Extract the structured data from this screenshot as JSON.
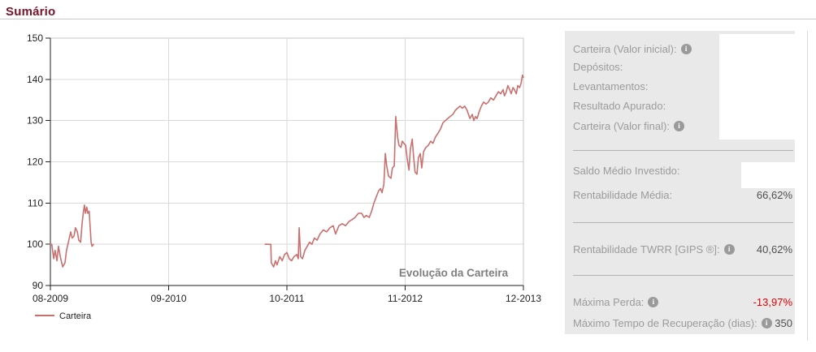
{
  "page": {
    "title": "Sumário"
  },
  "chart_data": {
    "type": "line",
    "title": "Evolução da Carteira",
    "x_tick_labels": [
      "08-2009",
      "09-2010",
      "10-2011",
      "11-2012",
      "12-2013"
    ],
    "y_ticks": [
      90,
      100,
      110,
      120,
      130,
      140,
      150
    ],
    "ylim": [
      90,
      150
    ],
    "grid": true,
    "legend_position": "bottom-left",
    "colors": {
      "line": "#c9706f",
      "grid": "#d9d9d9",
      "border": "#c4c4c4",
      "axis": "#222222",
      "title": "#7f7f7f"
    },
    "series": [
      {
        "name": "Carteira",
        "color": "#c9706f",
        "segments": [
          [
            [
              0.0,
              100
            ],
            [
              0.003,
              100
            ],
            [
              0.007,
              96.5
            ],
            [
              0.01,
              98.5
            ],
            [
              0.014,
              96
            ],
            [
              0.017,
              99.5
            ],
            [
              0.021,
              97
            ],
            [
              0.026,
              94.5
            ],
            [
              0.031,
              95.5
            ],
            [
              0.034,
              98.5
            ],
            [
              0.04,
              101.5
            ],
            [
              0.043,
              103
            ],
            [
              0.046,
              101.5
            ],
            [
              0.05,
              102
            ],
            [
              0.053,
              104
            ],
            [
              0.057,
              103
            ],
            [
              0.06,
              101
            ],
            [
              0.064,
              100.5
            ],
            [
              0.067,
              105
            ],
            [
              0.07,
              108
            ],
            [
              0.072,
              109.5
            ],
            [
              0.074,
              107.5
            ],
            [
              0.077,
              109
            ],
            [
              0.079,
              107.5
            ],
            [
              0.082,
              108
            ],
            [
              0.086,
              100.5
            ],
            [
              0.088,
              99.5
            ],
            [
              0.091,
              100
            ]
          ],
          [
            [
              0.454,
              100
            ],
            [
              0.466,
              100
            ],
            [
              0.467,
              95.5
            ],
            [
              0.472,
              94.5
            ],
            [
              0.476,
              96
            ],
            [
              0.479,
              95
            ],
            [
              0.485,
              97
            ],
            [
              0.49,
              96
            ],
            [
              0.495,
              97.5
            ],
            [
              0.5,
              98
            ],
            [
              0.505,
              96.5
            ],
            [
              0.51,
              96
            ],
            [
              0.515,
              97
            ],
            [
              0.521,
              97.5
            ],
            [
              0.524,
              96.5
            ],
            [
              0.526,
              104
            ],
            [
              0.529,
              97
            ],
            [
              0.533,
              96.5
            ],
            [
              0.538,
              98.5
            ],
            [
              0.543,
              99.5
            ],
            [
              0.548,
              100.5
            ],
            [
              0.553,
              100
            ],
            [
              0.558,
              101.5
            ],
            [
              0.564,
              101
            ],
            [
              0.57,
              102.5
            ],
            [
              0.577,
              103.5
            ],
            [
              0.584,
              103
            ],
            [
              0.591,
              104
            ],
            [
              0.598,
              104.5
            ],
            [
              0.603,
              102.5
            ],
            [
              0.61,
              104.5
            ],
            [
              0.617,
              105
            ],
            [
              0.624,
              104.5
            ],
            [
              0.631,
              105.5
            ],
            [
              0.638,
              106
            ],
            [
              0.644,
              106.5
            ],
            [
              0.651,
              107.5
            ],
            [
              0.658,
              107.5
            ],
            [
              0.663,
              106.5
            ],
            [
              0.668,
              107
            ],
            [
              0.674,
              106.5
            ],
            [
              0.679,
              108
            ],
            [
              0.684,
              110
            ],
            [
              0.689,
              111.5
            ],
            [
              0.694,
              113
            ],
            [
              0.698,
              113.5
            ],
            [
              0.701,
              112.5
            ],
            [
              0.705,
              114.5
            ],
            [
              0.708,
              122
            ],
            [
              0.711,
              119
            ],
            [
              0.715,
              116.5
            ],
            [
              0.72,
              116
            ],
            [
              0.723,
              118.5
            ],
            [
              0.727,
              119
            ],
            [
              0.73,
              131
            ],
            [
              0.734,
              126
            ],
            [
              0.737,
              124
            ],
            [
              0.741,
              123.5
            ],
            [
              0.744,
              125
            ],
            [
              0.747,
              124.5
            ],
            [
              0.751,
              124
            ],
            [
              0.754,
              121
            ],
            [
              0.758,
              118
            ],
            [
              0.761,
              123
            ],
            [
              0.765,
              125.5
            ],
            [
              0.768,
              121
            ],
            [
              0.771,
              117.5
            ],
            [
              0.775,
              117
            ],
            [
              0.778,
              121
            ],
            [
              0.782,
              122
            ],
            [
              0.785,
              118.5
            ],
            [
              0.789,
              122.5
            ],
            [
              0.794,
              123.5
            ],
            [
              0.799,
              124
            ],
            [
              0.804,
              125
            ],
            [
              0.809,
              124.5
            ],
            [
              0.814,
              126
            ],
            [
              0.82,
              127
            ],
            [
              0.825,
              128
            ],
            [
              0.83,
              129.5
            ],
            [
              0.835,
              130
            ],
            [
              0.84,
              130.5
            ],
            [
              0.845,
              131
            ],
            [
              0.851,
              131.5
            ],
            [
              0.856,
              132.5
            ],
            [
              0.861,
              133
            ],
            [
              0.866,
              133.5
            ],
            [
              0.871,
              133
            ],
            [
              0.876,
              133.5
            ],
            [
              0.881,
              132.5
            ],
            [
              0.887,
              130.5
            ],
            [
              0.892,
              131.5
            ],
            [
              0.895,
              130
            ],
            [
              0.899,
              131
            ],
            [
              0.902,
              130.5
            ],
            [
              0.906,
              132
            ],
            [
              0.911,
              133.5
            ],
            [
              0.916,
              134.5
            ],
            [
              0.921,
              134
            ],
            [
              0.926,
              134.5
            ],
            [
              0.931,
              135.5
            ],
            [
              0.937,
              135
            ],
            [
              0.942,
              136
            ],
            [
              0.947,
              137
            ],
            [
              0.952,
              136.5
            ],
            [
              0.957,
              137.5
            ],
            [
              0.96,
              136
            ],
            [
              0.964,
              137
            ],
            [
              0.967,
              138.5
            ],
            [
              0.971,
              137.5
            ],
            [
              0.974,
              136.5
            ],
            [
              0.978,
              138
            ],
            [
              0.981,
              137.5
            ],
            [
              0.985,
              136.5
            ],
            [
              0.988,
              138.5
            ],
            [
              0.992,
              138
            ],
            [
              0.995,
              139
            ],
            [
              0.998,
              141
            ],
            [
              1.0,
              140.5
            ]
          ]
        ]
      }
    ]
  },
  "summary": {
    "rows": [
      {
        "label": "Carteira (Valor inicial):",
        "value": ""
      },
      {
        "label": "Depósitos:",
        "value": ""
      },
      {
        "label": "Levantamentos:",
        "value": ""
      },
      {
        "label": "Resultado Apurado:",
        "value": ""
      },
      {
        "label": "Carteira (Valor final):",
        "value": ""
      },
      {
        "label": "Saldo Médio Investido:",
        "value": ""
      },
      {
        "label": "Rentabilidade Média:",
        "value": "66,62%"
      },
      {
        "label": "Rentabilidade TWRR [GIPS ®]:",
        "value": "40,62%"
      },
      {
        "label": "Máxima Perda:",
        "value": "-13,97%"
      },
      {
        "label": "Máximo Tempo de Recuperação (dias):",
        "value": "350"
      }
    ],
    "info_icon_glyph": "i",
    "negative_color": "#e00000"
  }
}
